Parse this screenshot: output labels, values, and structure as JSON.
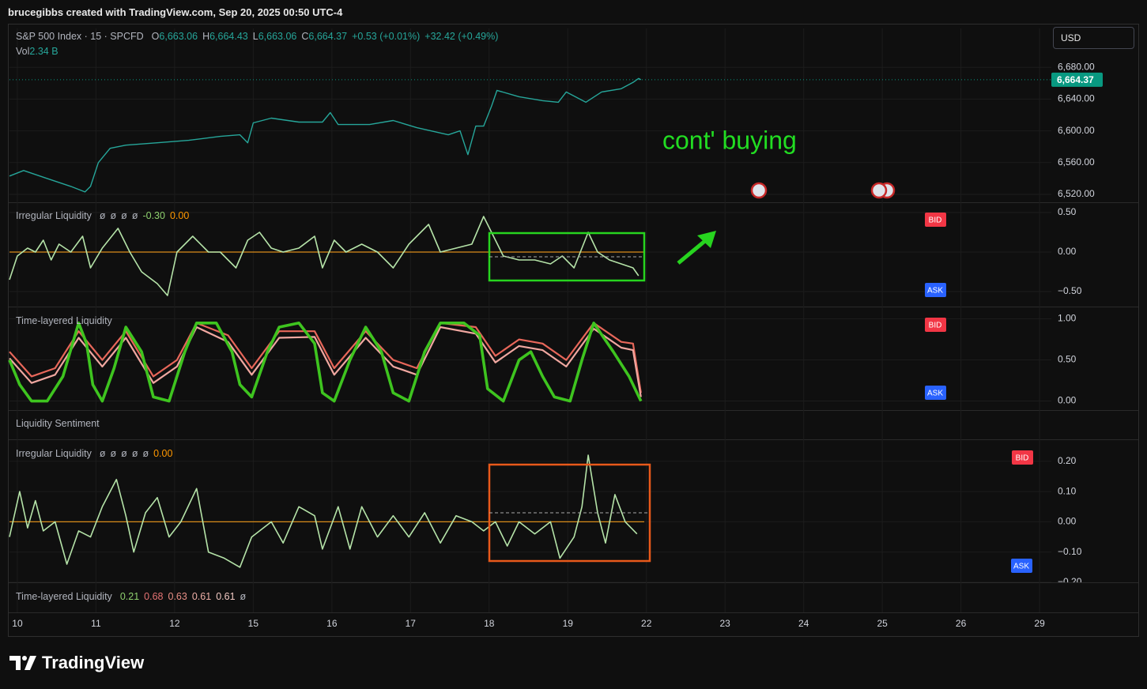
{
  "header": "brucegibbs created with TradingView.com, Sep 20, 2025 00:50 UTC-4",
  "currency": "USD",
  "brand": "TradingView",
  "time_axis": {
    "xlim": [
      -0.1,
      13.15
    ],
    "xticks": [
      {
        "value": 0,
        "label": "10"
      },
      {
        "value": 1,
        "label": "11"
      },
      {
        "value": 2,
        "label": "12"
      },
      {
        "value": 3,
        "label": "15"
      },
      {
        "value": 4,
        "label": "16"
      },
      {
        "value": 5,
        "label": "17"
      },
      {
        "value": 6,
        "label": "18"
      },
      {
        "value": 7,
        "label": "19"
      },
      {
        "value": 8,
        "label": "22"
      },
      {
        "value": 9,
        "label": "23"
      },
      {
        "value": 10,
        "label": "24"
      },
      {
        "value": 11,
        "label": "25"
      },
      {
        "value": 12,
        "label": "26"
      },
      {
        "value": 13,
        "label": "29"
      }
    ]
  },
  "chart_data": [
    {
      "type": "line",
      "symbol": "S&P 500 Index · 15 · SPCFD",
      "ohlc": [
        {
          "key": "O",
          "value": "6,663.06"
        },
        {
          "key": "H",
          "value": "6,664.43"
        },
        {
          "key": "L",
          "value": "6,663.06"
        },
        {
          "key": "C",
          "value": "6,664.37"
        }
      ],
      "change": [
        "+0.53 (+0.01%)",
        "+32.42 (+0.49%)"
      ],
      "volume": {
        "key": "Vol",
        "value": "2.34 B"
      },
      "ylim": [
        6510,
        6730
      ],
      "yticks": [
        {
          "value": 6520,
          "label": "6,520.00"
        },
        {
          "value": 6560,
          "label": "6,560.00"
        },
        {
          "value": 6600,
          "label": "6,600.00"
        },
        {
          "value": 6640,
          "label": "6,640.00"
        },
        {
          "value": 6680,
          "label": "6,680.00"
        }
      ],
      "last_price": {
        "value": 6664.37,
        "label": "6,664.37"
      },
      "annotation": "cont' buying",
      "series": [
        {
          "color": "#26a69a",
          "x": [
            -0.1,
            0.08,
            0.38,
            0.68,
            0.86,
            0.93,
            1.03,
            1.18,
            1.38,
            1.78,
            2.18,
            2.58,
            2.83,
            2.93,
            3.0,
            3.23,
            3.58,
            3.88,
            3.98,
            4.08,
            4.48,
            4.78,
            5.08,
            5.48,
            5.63,
            5.73,
            5.83,
            5.93,
            6.03,
            6.1,
            6.38,
            6.68,
            6.88,
            6.98,
            7.23,
            7.43,
            7.68,
            7.83,
            7.9,
            7.93
          ],
          "values": [
            6543,
            6550,
            6540,
            6530,
            6523,
            6530,
            6560,
            6578,
            6582,
            6585,
            6588,
            6593,
            6595,
            6585,
            6610,
            6616,
            6611,
            6611,
            6623,
            6608,
            6608,
            6613,
            6604,
            6595,
            6600,
            6570,
            6606,
            6606,
            6631,
            6651,
            6643,
            6638,
            6636,
            6649,
            6636,
            6649,
            6653,
            6661,
            6666,
            6664.37
          ]
        }
      ]
    },
    {
      "type": "line",
      "title": "Irregular Liquidity",
      "legend": [
        {
          "text": "ø",
          "color": "#b2b5be"
        },
        {
          "text": "ø",
          "color": "#b2b5be"
        },
        {
          "text": "ø",
          "color": "#b2b5be"
        },
        {
          "text": "ø",
          "color": "#b2b5be"
        },
        {
          "text": "-0.30",
          "color": "#8fd16f"
        },
        {
          "text": "0.00",
          "color": "#ff9800"
        }
      ],
      "ylim": [
        -0.69,
        0.62
      ],
      "yticks": [
        {
          "value": -0.5,
          "label": "−0.50"
        },
        {
          "value": 0,
          "label": "0.00"
        },
        {
          "value": 0.5,
          "label": "0.50"
        }
      ],
      "hline": 0,
      "hline_color": "#d98c1a",
      "badges": [
        "BID",
        "ASK"
      ],
      "series": [
        {
          "color": "#b5e3a8",
          "x": [
            -0.1,
            0,
            0.13,
            0.23,
            0.33,
            0.43,
            0.53,
            0.68,
            0.83,
            0.93,
            1.08,
            1.28,
            1.43,
            1.58,
            1.78,
            1.91,
            2.03,
            2.23,
            2.43,
            2.58,
            2.78,
            2.93,
            3.08,
            3.23,
            3.38,
            3.58,
            3.78,
            3.88,
            4.03,
            4.18,
            4.38,
            4.58,
            4.78,
            4.98,
            5.23,
            5.38,
            5.58,
            5.78,
            5.93,
            6.03,
            6.18,
            6.38,
            6.58,
            6.78,
            6.93,
            7.08,
            7.26,
            7.38,
            7.53,
            7.68,
            7.83,
            7.9
          ],
          "values": [
            -0.35,
            -0.05,
            0.05,
            0.0,
            0.15,
            -0.1,
            0.1,
            0.0,
            0.2,
            -0.2,
            0.05,
            0.3,
            0.0,
            -0.25,
            -0.4,
            -0.55,
            0.0,
            0.2,
            0.0,
            0.0,
            -0.2,
            0.15,
            0.25,
            0.05,
            0.0,
            0.05,
            0.2,
            -0.2,
            0.15,
            0.0,
            0.1,
            0.0,
            -0.2,
            0.1,
            0.35,
            0.0,
            0.05,
            0.1,
            0.45,
            0.25,
            -0.05,
            -0.1,
            -0.1,
            -0.15,
            -0.05,
            -0.2,
            0.25,
            0.0,
            -0.1,
            -0.15,
            -0.2,
            -0.3
          ]
        }
      ]
    },
    {
      "type": "line",
      "title": "Time-layered Liquidity",
      "legend": [],
      "ylim": [
        -0.11,
        1.14
      ],
      "yticks": [
        {
          "value": 0,
          "label": "0.00"
        },
        {
          "value": 0.5,
          "label": "0.50"
        },
        {
          "value": 1,
          "label": "1.00"
        }
      ],
      "badges": [
        "BID",
        "ASK"
      ],
      "series": [
        {
          "color": "#e8675a",
          "x": [
            -0.1,
            0.18,
            0.48,
            0.78,
            1.08,
            1.38,
            1.73,
            2.03,
            2.28,
            2.68,
            2.98,
            3.33,
            3.78,
            4.03,
            4.43,
            4.78,
            5.08,
            5.38,
            5.83,
            6.08,
            6.38,
            6.68,
            6.98,
            7.33,
            7.68,
            7.83,
            7.93
          ],
          "values": [
            0.6,
            0.3,
            0.4,
            0.85,
            0.5,
            0.85,
            0.3,
            0.5,
            0.95,
            0.8,
            0.4,
            0.85,
            0.85,
            0.4,
            0.85,
            0.5,
            0.4,
            0.95,
            0.9,
            0.55,
            0.75,
            0.7,
            0.5,
            0.95,
            0.72,
            0.7,
            0.1
          ]
        },
        {
          "color": "#f0a7a0",
          "x": [
            -0.1,
            0.18,
            0.48,
            0.78,
            1.08,
            1.38,
            1.73,
            2.03,
            2.28,
            2.68,
            2.98,
            3.33,
            3.78,
            4.03,
            4.43,
            4.78,
            5.08,
            5.38,
            5.83,
            6.08,
            6.38,
            6.68,
            6.98,
            7.33,
            7.68,
            7.83,
            7.93
          ],
          "values": [
            0.52,
            0.22,
            0.32,
            0.77,
            0.42,
            0.77,
            0.22,
            0.42,
            0.9,
            0.72,
            0.32,
            0.77,
            0.78,
            0.32,
            0.77,
            0.42,
            0.32,
            0.9,
            0.82,
            0.47,
            0.67,
            0.62,
            0.42,
            0.88,
            0.65,
            0.62,
            0.05
          ]
        },
        {
          "color": "#3ec41f",
          "x": [
            -0.1,
            0.03,
            0.18,
            0.38,
            0.58,
            0.78,
            0.88,
            0.96,
            1.08,
            1.23,
            1.38,
            1.58,
            1.73,
            1.93,
            2.13,
            2.28,
            2.53,
            2.73,
            2.83,
            2.98,
            3.18,
            3.33,
            3.58,
            3.78,
            3.88,
            4.03,
            4.23,
            4.43,
            4.63,
            4.78,
            4.98,
            5.18,
            5.38,
            5.68,
            5.88,
            5.98,
            6.18,
            6.38,
            6.53,
            6.68,
            6.83,
            7.03,
            7.18,
            7.33,
            7.58,
            7.78,
            7.93
          ],
          "values": [
            0.5,
            0.2,
            0.0,
            0.0,
            0.3,
            0.95,
            0.7,
            0.2,
            0.0,
            0.4,
            0.9,
            0.6,
            0.05,
            0.0,
            0.6,
            0.95,
            0.95,
            0.6,
            0.2,
            0.05,
            0.6,
            0.9,
            0.95,
            0.7,
            0.1,
            0.0,
            0.5,
            0.9,
            0.6,
            0.1,
            0.0,
            0.6,
            0.95,
            0.95,
            0.8,
            0.15,
            0.0,
            0.5,
            0.6,
            0.3,
            0.05,
            0.0,
            0.5,
            0.95,
            0.6,
            0.3,
            0.0
          ]
        }
      ]
    },
    {
      "type": "line",
      "title": "Irregular Liquidity",
      "legend": [
        {
          "text": "ø",
          "color": "#b2b5be"
        },
        {
          "text": "ø",
          "color": "#b2b5be"
        },
        {
          "text": "ø",
          "color": "#b2b5be"
        },
        {
          "text": "ø",
          "color": "#b2b5be"
        },
        {
          "text": "ø",
          "color": "#b2b5be"
        },
        {
          "text": "0.00",
          "color": "#ff9800"
        }
      ],
      "ylim": [
        -0.2,
        0.27
      ],
      "yticks": [
        {
          "value": -0.2,
          "label": "−0.20"
        },
        {
          "value": -0.1,
          "label": "−0.10"
        },
        {
          "value": 0,
          "label": "0.00"
        },
        {
          "value": 0.1,
          "label": "0.10"
        },
        {
          "value": 0.2,
          "label": "0.20"
        }
      ],
      "hline": 0,
      "hline_color": "#d98c1a",
      "badges": [
        "BID",
        "ASK"
      ],
      "series": [
        {
          "color": "#b5e3a8",
          "x": [
            -0.1,
            0.03,
            0.13,
            0.23,
            0.33,
            0.48,
            0.63,
            0.78,
            0.93,
            1.08,
            1.26,
            1.38,
            1.48,
            1.63,
            1.78,
            1.93,
            2.08,
            2.28,
            2.43,
            2.63,
            2.83,
            2.98,
            3.23,
            3.38,
            3.58,
            3.78,
            3.88,
            4.08,
            4.23,
            4.38,
            4.58,
            4.78,
            4.98,
            5.18,
            5.38,
            5.58,
            5.78,
            5.93,
            6.08,
            6.23,
            6.38,
            6.58,
            6.78,
            6.9,
            7.08,
            7.18,
            7.26,
            7.38,
            7.48,
            7.6,
            7.73,
            7.88
          ],
          "values": [
            -0.05,
            0.1,
            -0.02,
            0.07,
            -0.03,
            0.0,
            -0.14,
            -0.03,
            -0.05,
            0.05,
            0.14,
            0.02,
            -0.1,
            0.03,
            0.08,
            -0.05,
            0.0,
            0.11,
            -0.1,
            -0.12,
            -0.15,
            -0.05,
            0.0,
            -0.07,
            0.05,
            0.02,
            -0.09,
            0.05,
            -0.09,
            0.05,
            -0.05,
            0.02,
            -0.05,
            0.03,
            -0.07,
            0.02,
            0.0,
            -0.03,
            0.0,
            -0.08,
            0.0,
            -0.04,
            0.0,
            -0.12,
            -0.05,
            0.05,
            0.22,
            0.03,
            -0.07,
            0.09,
            0.0,
            -0.04
          ]
        }
      ]
    }
  ],
  "section_title": "Liquidity Sentiment",
  "footer_legend": {
    "title": "Time-layered Liquidity",
    "legend": [
      {
        "text": "0.21",
        "color": "#8fd16f"
      },
      {
        "text": "0.68",
        "color": "#e57373"
      },
      {
        "text": "0.63",
        "color": "#e88f86"
      },
      {
        "text": "0.61",
        "color": "#f0b0a8"
      },
      {
        "text": "0.61",
        "color": "#f0c8c2"
      },
      {
        "text": "ø",
        "color": "#b2b5be"
      }
    ]
  }
}
